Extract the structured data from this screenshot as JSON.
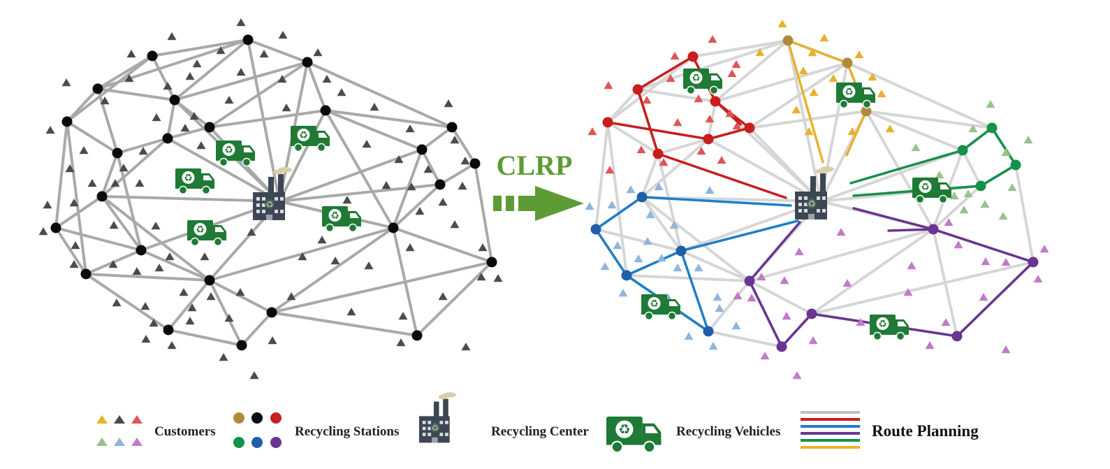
{
  "arrow_label": "CLRP",
  "legend": {
    "customers_label": "Customers",
    "stations_label": "Recycling Stations",
    "center_label": "Recycling Center",
    "vehicles_label": "Recycling Vehicles",
    "routes_label": "Route Planning"
  },
  "colors": {
    "network_edge": "#a9a9a9",
    "planned_base_edge": "#d6d6d6",
    "node_black": "#0a0a0a",
    "customer_gray": "#4b4b4b",
    "route_red": "#c81e1e",
    "route_blue": "#1f7fc6",
    "route_purple": "#6a3591",
    "route_green": "#14914a",
    "route_yellow": "#e8b230",
    "truck_green": "#1f7a35",
    "arrow_green": "#5d9c35",
    "factory_dark": "#3d4652"
  },
  "icons": [
    "recycling-center-icon",
    "recycling-truck-icon",
    "customer-triangle-icon",
    "recycling-station-node-icon"
  ]
}
